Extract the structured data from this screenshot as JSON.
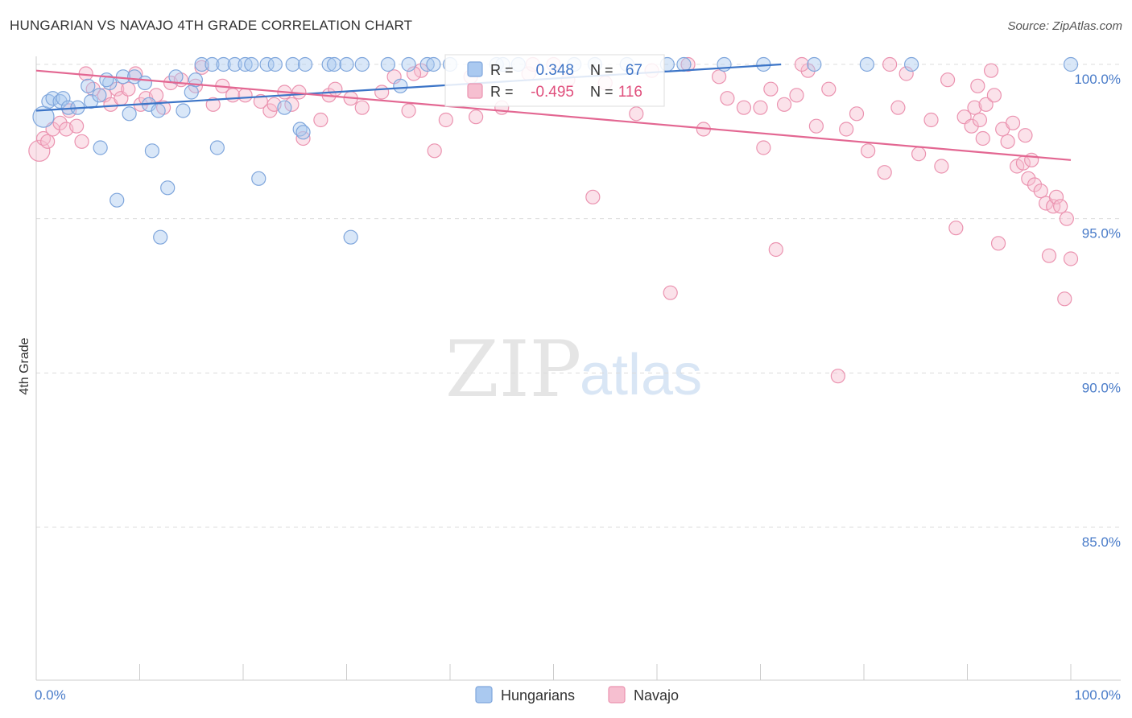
{
  "title": "HUNGARIAN VS NAVAJO 4TH GRADE CORRELATION CHART",
  "source": "Source: ZipAtlas.com",
  "watermark": {
    "zip": "ZIP",
    "atlas": "atlas"
  },
  "colors": {
    "blue_fill": "#aac9f0",
    "blue_stroke": "#7fa6dc",
    "blue_line": "#3b74c7",
    "pink_fill": "#f6bfd0",
    "pink_stroke": "#eb93b0",
    "pink_line": "#e36792",
    "axis_text": "#4a7cc9",
    "grid": "#dcdcdc"
  },
  "legend": {
    "rows": [
      {
        "series": "Hungarians",
        "r_label": "R =",
        "r_value": "0.348",
        "n_label": "N =",
        "n_value": "67"
      },
      {
        "series": "Navajo",
        "r_label": "R =",
        "r_value": "-0.495",
        "n_label": "N =",
        "n_value": "116"
      }
    ]
  },
  "chart_data": {
    "type": "scatter",
    "title": "HUNGARIAN VS NAVAJO 4TH GRADE CORRELATION CHART",
    "xlabel": "",
    "ylabel": "4th Grade",
    "xlim": [
      0,
      100
    ],
    "ylim": [
      80.3,
      100.4
    ],
    "x_tick_labels": [
      "0.0%",
      "100.0%"
    ],
    "y_ticks": [
      100,
      95,
      90,
      85
    ],
    "y_tick_labels": [
      "100.0%",
      "95.0%",
      "90.0%",
      "85.0%"
    ],
    "grid": "horizontal dashed",
    "legend_position": "top-center",
    "series": [
      {
        "name": "Hungarians",
        "trend": {
          "x": [
            0,
            72
          ],
          "y": [
            98.5,
            100.0
          ]
        },
        "points": [
          [
            0.7,
            98.3
          ],
          [
            1.2,
            98.8
          ],
          [
            1.6,
            98.9
          ],
          [
            2.3,
            98.8
          ],
          [
            2.6,
            98.9
          ],
          [
            3.1,
            98.6
          ],
          [
            4.0,
            98.6
          ],
          [
            5.3,
            98.8
          ],
          [
            6.1,
            99.0
          ],
          [
            5.0,
            99.3
          ],
          [
            7.1,
            99.4
          ],
          [
            6.8,
            99.5
          ],
          [
            8.4,
            99.6
          ],
          [
            9.5,
            99.6
          ],
          [
            10.5,
            99.4
          ],
          [
            9.0,
            98.4
          ],
          [
            10.9,
            98.7
          ],
          [
            11.8,
            98.5
          ],
          [
            13.5,
            99.6
          ],
          [
            14.2,
            98.5
          ],
          [
            15.0,
            99.1
          ],
          [
            6.2,
            97.3
          ],
          [
            11.2,
            97.2
          ],
          [
            17.5,
            97.3
          ],
          [
            7.8,
            95.6
          ],
          [
            12.7,
            96.0
          ],
          [
            21.5,
            96.3
          ],
          [
            12.0,
            94.4
          ],
          [
            30.4,
            94.4
          ],
          [
            24.0,
            98.6
          ],
          [
            25.5,
            97.9
          ],
          [
            25.8,
            97.8
          ],
          [
            15.4,
            99.5
          ],
          [
            16.0,
            100
          ],
          [
            17.0,
            100
          ],
          [
            18.1,
            100
          ],
          [
            19.2,
            100
          ],
          [
            20.2,
            100
          ],
          [
            20.8,
            100
          ],
          [
            22.3,
            100
          ],
          [
            23.1,
            100
          ],
          [
            24.8,
            100
          ],
          [
            26.0,
            100
          ],
          [
            28.3,
            100
          ],
          [
            28.8,
            100
          ],
          [
            30.0,
            100
          ],
          [
            31.5,
            100
          ],
          [
            34.0,
            100
          ],
          [
            36.0,
            100
          ],
          [
            37.8,
            100
          ],
          [
            38.4,
            100
          ],
          [
            40.0,
            100
          ],
          [
            44.5,
            100
          ],
          [
            45.1,
            100
          ],
          [
            46.6,
            100
          ],
          [
            52.0,
            100
          ],
          [
            54.0,
            100
          ],
          [
            57.1,
            100
          ],
          [
            61.0,
            100
          ],
          [
            62.6,
            100
          ],
          [
            66.5,
            100
          ],
          [
            70.3,
            100
          ],
          [
            75.2,
            100
          ],
          [
            80.3,
            100
          ],
          [
            84.6,
            100
          ],
          [
            100.0,
            100
          ],
          [
            35.2,
            99.3
          ]
        ]
      },
      {
        "name": "Navajo",
        "trend": {
          "x": [
            0,
            100
          ],
          "y": [
            99.8,
            96.9
          ]
        },
        "points": [
          [
            0.3,
            97.2
          ],
          [
            0.7,
            97.6
          ],
          [
            1.1,
            97.5
          ],
          [
            1.6,
            97.9
          ],
          [
            2.3,
            98.1
          ],
          [
            2.9,
            97.9
          ],
          [
            3.2,
            98.5
          ],
          [
            3.9,
            98.0
          ],
          [
            4.4,
            97.5
          ],
          [
            4.8,
            99.7
          ],
          [
            5.5,
            99.2
          ],
          [
            6.6,
            99.0
          ],
          [
            7.2,
            98.7
          ],
          [
            7.8,
            99.2
          ],
          [
            8.2,
            98.9
          ],
          [
            8.9,
            99.2
          ],
          [
            9.6,
            99.7
          ],
          [
            10.1,
            98.7
          ],
          [
            10.6,
            98.9
          ],
          [
            11.6,
            99.0
          ],
          [
            12.3,
            98.6
          ],
          [
            13.0,
            99.4
          ],
          [
            14.0,
            99.5
          ],
          [
            15.4,
            99.3
          ],
          [
            16.0,
            99.9
          ],
          [
            17.1,
            98.7
          ],
          [
            18.0,
            99.3
          ],
          [
            19.0,
            99.0
          ],
          [
            20.2,
            99.0
          ],
          [
            21.7,
            98.8
          ],
          [
            22.6,
            98.5
          ],
          [
            23.0,
            98.7
          ],
          [
            24.0,
            99.1
          ],
          [
            24.7,
            98.7
          ],
          [
            25.4,
            99.1
          ],
          [
            25.8,
            97.6
          ],
          [
            27.5,
            98.2
          ],
          [
            28.3,
            99.0
          ],
          [
            28.9,
            99.2
          ],
          [
            30.4,
            98.9
          ],
          [
            31.5,
            98.6
          ],
          [
            33.4,
            99.1
          ],
          [
            34.6,
            99.6
          ],
          [
            36.0,
            98.5
          ],
          [
            37.2,
            99.8
          ],
          [
            38.5,
            97.2
          ],
          [
            39.6,
            98.2
          ],
          [
            42.5,
            98.3
          ],
          [
            45.0,
            98.6
          ],
          [
            47.6,
            99.7
          ],
          [
            51.4,
            99.5
          ],
          [
            53.8,
            95.7
          ],
          [
            59.5,
            99.8
          ],
          [
            61.3,
            92.6
          ],
          [
            64.5,
            97.9
          ],
          [
            66.0,
            99.6
          ],
          [
            66.8,
            98.9
          ],
          [
            68.4,
            98.6
          ],
          [
            70.0,
            98.6
          ],
          [
            70.3,
            97.3
          ],
          [
            71.0,
            99.2
          ],
          [
            71.5,
            94.0
          ],
          [
            72.3,
            98.7
          ],
          [
            73.5,
            99.0
          ],
          [
            74.6,
            99.8
          ],
          [
            75.4,
            98.0
          ],
          [
            76.6,
            99.2
          ],
          [
            77.5,
            89.9
          ],
          [
            78.3,
            97.9
          ],
          [
            79.3,
            98.4
          ],
          [
            80.4,
            97.2
          ],
          [
            82.0,
            96.5
          ],
          [
            83.3,
            98.6
          ],
          [
            84.1,
            99.7
          ],
          [
            85.3,
            97.1
          ],
          [
            86.5,
            98.2
          ],
          [
            87.5,
            96.7
          ],
          [
            88.1,
            99.5
          ],
          [
            88.9,
            94.7
          ],
          [
            89.7,
            98.3
          ],
          [
            90.4,
            98.0
          ],
          [
            90.7,
            98.6
          ],
          [
            91.0,
            99.3
          ],
          [
            91.2,
            98.2
          ],
          [
            91.5,
            97.6
          ],
          [
            91.8,
            98.7
          ],
          [
            92.3,
            99.8
          ],
          [
            92.6,
            99.0
          ],
          [
            93.0,
            94.2
          ],
          [
            93.4,
            97.9
          ],
          [
            93.9,
            97.5
          ],
          [
            94.4,
            98.1
          ],
          [
            94.8,
            96.7
          ],
          [
            95.4,
            96.8
          ],
          [
            95.6,
            97.7
          ],
          [
            95.9,
            96.3
          ],
          [
            96.2,
            96.9
          ],
          [
            96.5,
            96.1
          ],
          [
            97.1,
            95.9
          ],
          [
            97.6,
            95.5
          ],
          [
            97.9,
            93.8
          ],
          [
            98.3,
            95.4
          ],
          [
            98.6,
            95.7
          ],
          [
            99.0,
            95.4
          ],
          [
            99.4,
            92.4
          ],
          [
            99.6,
            95.0
          ],
          [
            100.0,
            93.7
          ],
          [
            36.5,
            99.7
          ],
          [
            42.0,
            99.6
          ],
          [
            55.0,
            99.4
          ],
          [
            58.0,
            98.4
          ],
          [
            63.0,
            100
          ],
          [
            82.5,
            100
          ],
          [
            74.0,
            100
          ],
          [
            50.0,
            100
          ],
          [
            48.0,
            100
          ]
        ]
      }
    ]
  }
}
